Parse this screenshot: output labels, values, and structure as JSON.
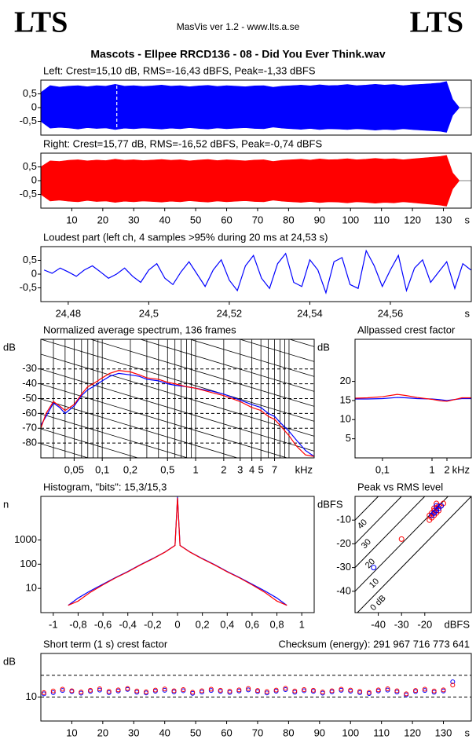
{
  "header": {
    "logo_left": "LTS",
    "app": "MasVis ver 1.2 - www.lts.a.se",
    "logo_right": "LTS",
    "file": "Mascots - Ellpee RRCD136 - 08 - Did You Ever Think.wav"
  },
  "chart_data": [
    {
      "type": "area",
      "title": "Left: Crest=15,10 dB, RMS=-16,43 dBFS, Peak=-1,33 dBFS",
      "x": [
        0,
        3,
        6,
        9,
        12,
        15,
        18,
        21,
        24,
        27,
        30,
        33,
        36,
        39,
        42,
        45,
        48,
        51,
        54,
        57,
        60,
        63,
        66,
        69,
        72,
        75,
        78,
        81,
        84,
        87,
        90,
        93,
        96,
        99,
        102,
        105,
        108,
        111,
        114,
        117,
        120,
        123,
        126,
        129,
        131,
        133,
        135
      ],
      "series": [
        {
          "color": "#0000ff",
          "values": [
            0.55,
            0.8,
            0.75,
            0.78,
            0.8,
            0.76,
            0.8,
            0.78,
            0.85,
            0.78,
            0.8,
            0.77,
            0.79,
            0.82,
            0.78,
            0.8,
            0.76,
            0.79,
            0.81,
            0.77,
            0.8,
            0.78,
            0.76,
            0.79,
            0.8,
            0.74,
            0.78,
            0.8,
            0.82,
            0.79,
            0.83,
            0.8,
            0.81,
            0.84,
            0.8,
            0.82,
            0.85,
            0.82,
            0.84,
            0.8,
            0.83,
            0.85,
            0.87,
            0.9,
            0.95,
            0.3,
            0.02
          ]
        },
        {
          "color": "#0000ff",
          "values": [
            -0.5,
            -0.75,
            -0.72,
            -0.74,
            -0.78,
            -0.73,
            -0.76,
            -0.74,
            -0.8,
            -0.75,
            -0.77,
            -0.74,
            -0.76,
            -0.78,
            -0.75,
            -0.77,
            -0.73,
            -0.76,
            -0.78,
            -0.74,
            -0.77,
            -0.75,
            -0.73,
            -0.76,
            -0.77,
            -0.71,
            -0.75,
            -0.77,
            -0.79,
            -0.76,
            -0.8,
            -0.77,
            -0.78,
            -0.8,
            -0.77,
            -0.79,
            -0.82,
            -0.79,
            -0.81,
            -0.77,
            -0.8,
            -0.82,
            -0.84,
            -0.86,
            -0.9,
            -0.28,
            -0.02
          ]
        }
      ],
      "xlim": [
        0,
        139
      ],
      "ylim": [
        -1,
        1
      ],
      "marker_x": 24.53,
      "yticks": [
        {
          "value": 0.5,
          "label": "0,5"
        },
        0,
        {
          "value": -0.5,
          "label": "-0,5"
        }
      ]
    },
    {
      "type": "area",
      "title": "Right: Crest=15,77 dB, RMS=-16,52 dBFS, Peak=-0,74 dBFS",
      "x": [
        0,
        3,
        6,
        9,
        12,
        15,
        18,
        21,
        24,
        27,
        30,
        33,
        36,
        39,
        42,
        45,
        48,
        51,
        54,
        57,
        60,
        63,
        66,
        69,
        72,
        75,
        78,
        81,
        84,
        87,
        90,
        93,
        96,
        99,
        102,
        105,
        108,
        111,
        114,
        117,
        120,
        123,
        126,
        129,
        131,
        133,
        135
      ],
      "series": [
        {
          "color": "#ff0000",
          "values": [
            0.5,
            0.72,
            0.7,
            0.74,
            0.76,
            0.72,
            0.75,
            0.73,
            0.78,
            0.74,
            0.76,
            0.73,
            0.75,
            0.77,
            0.74,
            0.76,
            0.72,
            0.75,
            0.77,
            0.73,
            0.76,
            0.74,
            0.72,
            0.75,
            0.76,
            0.7,
            0.74,
            0.76,
            0.78,
            0.75,
            0.79,
            0.76,
            0.77,
            0.8,
            0.76,
            0.78,
            0.81,
            0.78,
            0.8,
            0.76,
            0.79,
            0.82,
            0.85,
            0.88,
            0.92,
            0.28,
            0.02
          ]
        },
        {
          "color": "#ff0000",
          "values": [
            -0.5,
            -0.74,
            -0.71,
            -0.75,
            -0.77,
            -0.72,
            -0.76,
            -0.74,
            -0.79,
            -0.75,
            -0.77,
            -0.74,
            -0.76,
            -0.78,
            -0.75,
            -0.77,
            -0.73,
            -0.76,
            -0.78,
            -0.74,
            -0.77,
            -0.75,
            -0.73,
            -0.76,
            -0.77,
            -0.71,
            -0.75,
            -0.77,
            -0.79,
            -0.76,
            -0.8,
            -0.77,
            -0.78,
            -0.81,
            -0.77,
            -0.79,
            -0.82,
            -0.79,
            -0.81,
            -0.77,
            -0.8,
            -0.83,
            -0.86,
            -0.89,
            -0.93,
            -0.3,
            -0.02
          ]
        }
      ],
      "xlim": [
        0,
        139
      ],
      "ylim": [
        -1,
        1
      ],
      "x_label": "s",
      "yticks": [
        {
          "value": 0.5,
          "label": "0,5"
        },
        0,
        {
          "value": -0.5,
          "label": "-0,5"
        }
      ],
      "xticks": [
        10,
        20,
        30,
        40,
        50,
        60,
        70,
        80,
        90,
        100,
        110,
        120,
        130
      ]
    },
    {
      "type": "line",
      "title": "Loudest part (left  ch, 4 samples >95% during 20 ms at 24,53 s)",
      "x": [
        24.474,
        24.476,
        24.478,
        24.48,
        24.482,
        24.484,
        24.486,
        24.488,
        24.49,
        24.492,
        24.494,
        24.496,
        24.498,
        24.5,
        24.502,
        24.504,
        24.506,
        24.508,
        24.51,
        24.512,
        24.514,
        24.516,
        24.518,
        24.52,
        24.522,
        24.524,
        24.526,
        24.528,
        24.53,
        24.532,
        24.534,
        24.536,
        24.538,
        24.54,
        24.542,
        24.544,
        24.546,
        24.548,
        24.55,
        24.552,
        24.554,
        24.556,
        24.558,
        24.56,
        24.562,
        24.564,
        24.566,
        24.568,
        24.57,
        24.572,
        24.574,
        24.576,
        24.578,
        24.58
      ],
      "series": [
        {
          "color": "#0000ff",
          "values": [
            0.15,
            0.03,
            0.22,
            0.08,
            -0.08,
            0.15,
            0.3,
            0.08,
            -0.15,
            0,
            0.22,
            -0.08,
            -0.3,
            0.15,
            0.38,
            -0.15,
            -0.38,
            0.08,
            0.45,
            0,
            -0.45,
            0.15,
            0.52,
            -0.22,
            -0.6,
            0.3,
            0.68,
            -0.15,
            -0.52,
            0.38,
            0.75,
            -0.3,
            -0.45,
            0.52,
            0.15,
            -0.68,
            0.45,
            0.6,
            -0.38,
            -0.52,
            0.85,
            0.3,
            -0.45,
            0.15,
            0.68,
            -0.6,
            0.22,
            0.52,
            -0.3,
            0.08,
            0.45,
            -0.52,
            0.38,
            0.15
          ]
        }
      ],
      "xlim": [
        24.4732,
        24.5801
      ],
      "ylim": [
        -1,
        1
      ],
      "x_label": "s",
      "yticks": [
        {
          "value": 0.5,
          "label": "0,5"
        },
        0,
        {
          "value": -0.5,
          "label": "-0,5"
        }
      ],
      "xticks": [
        {
          "value": 24.48,
          "label": "24,48"
        },
        {
          "value": 24.5,
          "label": "24,5"
        },
        {
          "value": 24.52,
          "label": "24,52"
        },
        {
          "value": 24.54,
          "label": "24,54"
        },
        {
          "value": 24.56,
          "label": "24,56"
        }
      ]
    },
    {
      "type": "line",
      "title": "Normalized average spectrum, 136 frames",
      "y_label": "dB",
      "x_label": "kHz",
      "x": [
        0.022,
        0.025,
        0.03,
        0.035,
        0.04,
        0.05,
        0.06,
        0.07,
        0.08,
        0.1,
        0.12,
        0.15,
        0.2,
        0.25,
        0.3,
        0.4,
        0.5,
        0.6,
        0.8,
        1,
        1.5,
        2,
        3,
        4,
        5,
        6,
        7,
        8,
        10,
        12,
        15,
        18.6
      ],
      "series": [
        {
          "color": "#0000ff",
          "values": [
            -68,
            -62,
            -53,
            -56,
            -60,
            -55,
            -48,
            -44,
            -42,
            -38,
            -35,
            -33,
            -34,
            -35,
            -37,
            -38,
            -40,
            -41,
            -42,
            -43,
            -45,
            -47,
            -51,
            -54,
            -56,
            -60,
            -62,
            -66,
            -72,
            -78,
            -85,
            -89
          ]
        },
        {
          "color": "#ff0000",
          "values": [
            -70,
            -60,
            -52,
            -55,
            -58,
            -54,
            -47,
            -42,
            -40,
            -36,
            -33,
            -31,
            -32,
            -34,
            -36,
            -37,
            -39,
            -40,
            -42,
            -43,
            -46,
            -48,
            -52,
            -56,
            -58,
            -62,
            -64,
            -68,
            -75,
            -82,
            -88,
            -89
          ]
        }
      ],
      "xlog": true,
      "grid": true,
      "diagonal_grid": true,
      "xlim": [
        0.022,
        18.6
      ],
      "ylim": [
        -90,
        -10
      ],
      "yticks": [
        -30,
        -40,
        -50,
        -60,
        -70,
        -80
      ],
      "xticks": [
        {
          "value": 0.05,
          "label": "0,05"
        },
        {
          "value": 0.1,
          "label": "0,1"
        },
        {
          "value": 0.2,
          "label": "0,2"
        },
        {
          "value": 0.5,
          "label": "0,5"
        },
        1,
        2,
        3,
        4,
        5,
        7
      ]
    },
    {
      "type": "line",
      "title": "Allpassed crest factor",
      "y_label": "dB",
      "x_label": "kHz",
      "x": [
        0.028,
        0.05,
        0.1,
        0.2,
        0.3,
        0.5,
        1,
        1.5,
        2,
        3,
        4,
        6.2
      ],
      "series": [
        {
          "color": "#0000ff",
          "values": [
            15.4,
            15.4,
            15.5,
            15.8,
            15.7,
            15.5,
            15.4,
            15.2,
            15.0,
            15.3,
            15.5,
            15.5
          ]
        },
        {
          "color": "#ff0000",
          "values": [
            15.6,
            15.7,
            16.0,
            16.6,
            16.3,
            15.8,
            15.3,
            14.9,
            14.8,
            15.3,
            15.7,
            15.7
          ]
        }
      ],
      "xlog": true,
      "xlim": [
        0.028,
        6.2
      ],
      "ylim": [
        0,
        31
      ],
      "yticks": [
        20,
        15,
        10,
        5
      ],
      "xticks": [
        {
          "value": 0.1,
          "label": "0,1"
        },
        1,
        2
      ]
    },
    {
      "type": "line",
      "title": "Histogram, \"bits\": 15,3/15,3",
      "y_label": "n",
      "x": [
        -0.88,
        -0.8,
        -0.7,
        -0.6,
        -0.5,
        -0.4,
        -0.3,
        -0.2,
        -0.1,
        -0.02,
        0,
        0.02,
        0.1,
        0.2,
        0.3,
        0.4,
        0.5,
        0.6,
        0.7,
        0.8,
        0.88
      ],
      "series": [
        {
          "color": "#0000ff",
          "values": [
            2,
            4,
            8,
            15,
            28,
            50,
            95,
            170,
            320,
            600,
            60000,
            600,
            320,
            170,
            95,
            50,
            28,
            15,
            8,
            4,
            2
          ]
        },
        {
          "color": "#ff0000",
          "values": [
            2,
            3,
            7,
            14,
            27,
            48,
            92,
            165,
            315,
            590,
            55000,
            590,
            315,
            165,
            92,
            48,
            27,
            14,
            7,
            3,
            2
          ]
        }
      ],
      "ylog": true,
      "xlim": [
        -1.1,
        1.1
      ],
      "ylim": [
        1,
        63000
      ],
      "yticks": [
        1000,
        100,
        10
      ],
      "xticks": [
        -1,
        {
          "value": -0.8,
          "label": "-0,8"
        },
        {
          "value": -0.6,
          "label": "-0,6"
        },
        {
          "value": -0.4,
          "label": "-0,4"
        },
        {
          "value": -0.2,
          "label": "-0,2"
        },
        0,
        {
          "value": 0.2,
          "label": "0,2"
        },
        {
          "value": 0.4,
          "label": "0,4"
        },
        {
          "value": 0.6,
          "label": "0,6"
        },
        {
          "value": 0.8,
          "label": "0,8"
        },
        1
      ]
    },
    {
      "type": "scatter",
      "title": "Peak vs RMS level",
      "y_label": "dBFS",
      "x_label": "dBFS",
      "series": [
        {
          "color": "#ff0000",
          "x": [
            -18,
            -17,
            -16,
            -15,
            -14,
            -17,
            -16,
            -15,
            -14,
            -13,
            -16,
            -15,
            -18,
            -30,
            -12,
            -13
          ],
          "values": [
            -8,
            -7,
            -6,
            -5,
            -4,
            -9,
            -8,
            -7,
            -6,
            -4,
            -5,
            -3,
            -10,
            -18,
            -3,
            -4
          ]
        },
        {
          "color": "#0000ff",
          "x": [
            -17,
            -16,
            -15,
            -14,
            -16,
            -15,
            -42,
            -13
          ],
          "values": [
            -8,
            -7,
            -6,
            -5,
            -7,
            -4,
            -30,
            -4
          ]
        }
      ],
      "xlim": [
        -50,
        0
      ],
      "ylim": [
        -49,
        0
      ],
      "yticks": [
        -10,
        -20,
        -30,
        -40
      ],
      "xticks": [
        -40,
        -30,
        -20
      ],
      "crest_lines": [
        40,
        30,
        20,
        10,
        {
          "value": 0,
          "label": "0 dB"
        }
      ]
    },
    {
      "type": "scatter",
      "title": "Short term (1 s) crest factor",
      "annotation": "Checksum (energy):  291 967 716 773 641",
      "y_label": "dB",
      "x_label": "s",
      "x": [
        1,
        4,
        7,
        10,
        13,
        16,
        19,
        22,
        25,
        28,
        31,
        34,
        37,
        40,
        43,
        46,
        49,
        52,
        55,
        58,
        61,
        64,
        67,
        70,
        73,
        76,
        79,
        82,
        85,
        88,
        91,
        94,
        97,
        100,
        103,
        106,
        109,
        112,
        115,
        118,
        121,
        124,
        127,
        130,
        133
      ],
      "series": [
        {
          "color": "#0000ff",
          "values": [
            11.5,
            12,
            13,
            12.5,
            11.8,
            12.6,
            13.2,
            12,
            12.8,
            13.5,
            12.2,
            11.9,
            12.7,
            13.1,
            12.4,
            12.9,
            11.7,
            12.3,
            13,
            12.6,
            12.1,
            12.8,
            13.3,
            12.5,
            11.9,
            12.7,
            13.4,
            12.2,
            12.9,
            12.6,
            11.8,
            12.4,
            13.1,
            12.7,
            12,
            11.6,
            12.8,
            13.2,
            12.3,
            11,
            12.5,
            13,
            12.2,
            12.8,
            17
          ]
        },
        {
          "color": "#ff0000",
          "values": [
            12,
            12.8,
            13.6,
            12.9,
            12.3,
            13.1,
            13.8,
            12.6,
            13.3,
            13.9,
            12.8,
            12.4,
            13.2,
            13.7,
            12.9,
            13.4,
            12.2,
            12.9,
            13.6,
            13.1,
            12.7,
            13.3,
            13.9,
            13,
            12.5,
            13.2,
            14,
            12.8,
            13.4,
            13.1,
            12.3,
            12.9,
            13.6,
            13.2,
            12.6,
            12.1,
            13.3,
            13.8,
            12.9,
            11.5,
            13,
            13.6,
            12.8,
            13.3,
            15.5
          ]
        }
      ],
      "xlim": [
        0,
        139
      ],
      "ylim": [
        -1,
        30
      ],
      "yticks": [
        10
      ],
      "dashed_lines": [
        10,
        20
      ],
      "xticks": [
        10,
        20,
        30,
        40,
        50,
        60,
        70,
        80,
        90,
        100,
        110,
        120,
        130
      ]
    }
  ]
}
